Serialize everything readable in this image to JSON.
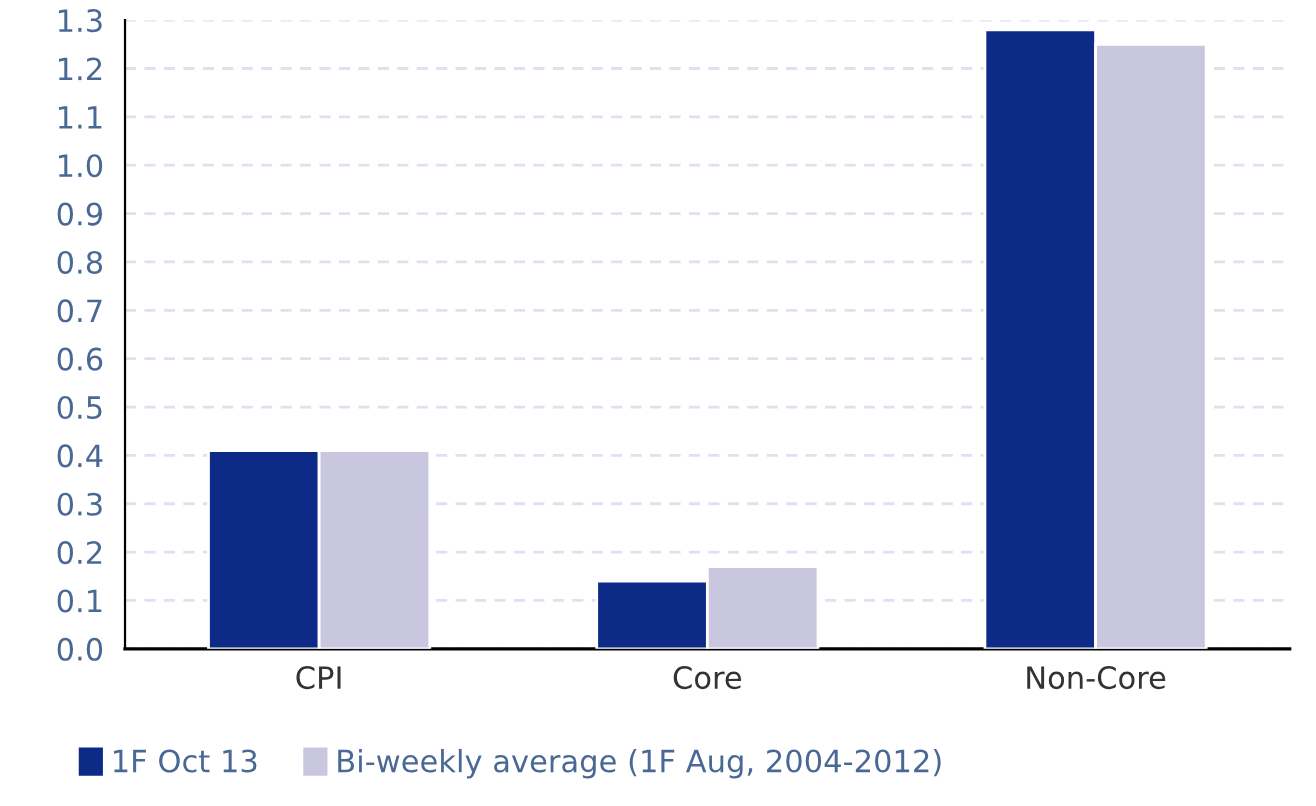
{
  "chart_data": {
    "type": "bar",
    "categories": [
      "CPI",
      "Core",
      "Non-Core"
    ],
    "series": [
      {
        "name": "1F Oct 13",
        "color": "#0d2a87",
        "values": [
          0.41,
          0.14,
          1.28
        ]
      },
      {
        "name": "Bi-weekly average (1F Aug, 2004-2012)",
        "color": "#c9c7e0",
        "values": [
          0.41,
          0.17,
          1.25
        ]
      }
    ],
    "ylim": [
      0,
      1.3
    ],
    "yticks": [
      {
        "value": 0,
        "label": "0.0"
      },
      0.1,
      0.2,
      0.3,
      0.4,
      0.5,
      0.6,
      0.7,
      0.8,
      0.9,
      {
        "value": 1,
        "label": "1.0"
      },
      1.1,
      1.2,
      1.3
    ],
    "grid": "y",
    "legend": "bottom"
  }
}
